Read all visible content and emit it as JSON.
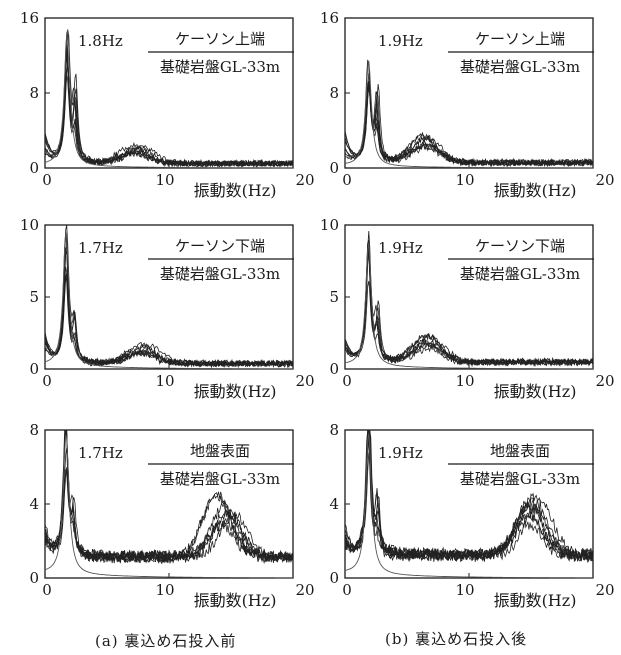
{
  "chart_data": [
    {
      "id": "a-top",
      "type": "line",
      "column": "a",
      "peak_label": "1.8Hz",
      "ratio_top": "ケーソン上端",
      "ratio_bottom": "基礎岩盤GL-33m",
      "xlabel": "振動数(Hz)",
      "xlim": [
        0,
        20
      ],
      "ylim": [
        0,
        16
      ],
      "xticks": [
        0,
        10,
        20
      ],
      "yticks": [
        0,
        8,
        16
      ],
      "f0": 1.8,
      "peak": 15,
      "second_peak": 8.5,
      "second_freq": 2.4,
      "hump": 1.4,
      "hump_freq": 7.5,
      "tail": 0.5,
      "curves": 8
    },
    {
      "id": "b-top",
      "type": "line",
      "column": "b",
      "peak_label": "1.9Hz",
      "ratio_top": "ケーソン上端",
      "ratio_bottom": "基礎岩盤GL-33m",
      "xlabel": "振動数(Hz)",
      "xlim": [
        0,
        20
      ],
      "ylim": [
        0,
        16
      ],
      "xticks": [
        0,
        10,
        20
      ],
      "yticks": [
        0,
        8,
        16
      ],
      "f0": 1.9,
      "peak": 11.5,
      "second_peak": 8.5,
      "second_freq": 2.6,
      "hump": 2.2,
      "hump_freq": 6.5,
      "tail": 0.6,
      "curves": 8
    },
    {
      "id": "a-mid",
      "type": "line",
      "column": "a",
      "peak_label": "1.7Hz",
      "ratio_top": "ケーソン下端",
      "ratio_bottom": "基礎岩盤GL-33m",
      "xlabel": "振動数(Hz)",
      "xlim": [
        0,
        20
      ],
      "ylim": [
        0,
        10
      ],
      "xticks": [
        0,
        10,
        20
      ],
      "yticks": [
        0,
        5,
        10
      ],
      "f0": 1.7,
      "peak": 9.6,
      "second_peak": 3.0,
      "second_freq": 2.4,
      "hump": 1.0,
      "hump_freq": 8.0,
      "tail": 0.4,
      "curves": 8
    },
    {
      "id": "b-mid",
      "type": "line",
      "column": "b",
      "peak_label": "1.9Hz",
      "ratio_top": "ケーソン下端",
      "ratio_bottom": "基礎岩盤GL-33m",
      "xlabel": "振動数(Hz)",
      "xlim": [
        0,
        20
      ],
      "ylim": [
        0,
        10
      ],
      "xticks": [
        0,
        10,
        20
      ],
      "yticks": [
        0,
        5,
        10
      ],
      "f0": 1.9,
      "peak": 8.7,
      "second_peak": 4.0,
      "second_freq": 2.6,
      "hump": 1.4,
      "hump_freq": 6.5,
      "tail": 0.5,
      "curves": 8
    },
    {
      "id": "a-bot",
      "type": "line",
      "column": "a",
      "peak_label": "1.7Hz",
      "ratio_top": "地盤表面",
      "ratio_bottom": "基礎岩盤GL-33m",
      "xlabel": "振動数(Hz)",
      "xlim": [
        0,
        20
      ],
      "ylim": [
        0,
        8
      ],
      "xticks": [
        0,
        10,
        20
      ],
      "yticks": [
        0,
        4,
        8
      ],
      "f0": 1.7,
      "peak": 7.8,
      "second_peak": 2.5,
      "second_freq": 2.3,
      "hump": 2.6,
      "hump_freq": 14.5,
      "tail": 1.2,
      "curves": 8
    },
    {
      "id": "b-bot",
      "type": "line",
      "column": "b",
      "peak_label": "1.9Hz",
      "ratio_top": "地盤表面",
      "ratio_bottom": "基礎岩盤GL-33m",
      "xlabel": "振動数(Hz)",
      "xlim": [
        0,
        20
      ],
      "ylim": [
        0,
        8
      ],
      "xticks": [
        0,
        10,
        20
      ],
      "yticks": [
        0,
        4,
        8
      ],
      "f0": 1.9,
      "peak": 7.8,
      "second_peak": 3.0,
      "second_freq": 2.6,
      "hump": 2.4,
      "hump_freq": 15.5,
      "tail": 1.3,
      "curves": 8
    }
  ],
  "captions": {
    "a": "(a) 裏込め石投入前",
    "b": "(b) 裏込め石投入後"
  },
  "colors": {
    "ink": "#1a1a1a",
    "curve": "#222222",
    "thin": "#555555"
  }
}
